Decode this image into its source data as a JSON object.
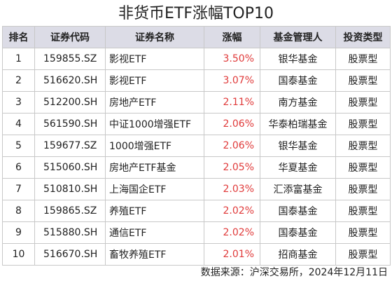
{
  "title": "非货币ETF涨幅TOP10",
  "headers": [
    "排名",
    "证券代码",
    "证券名称",
    "涨幅",
    "基金管理人",
    "投资类型"
  ],
  "rows": [
    {
      "rank": "1",
      "code": "159855.SZ",
      "name": "影视ETF",
      "change": "3.50%",
      "manager": "银华基金",
      "type": "股票型"
    },
    {
      "rank": "2",
      "code": "516620.SH",
      "name": "影视ETF",
      "change": "3.07%",
      "manager": "国泰基金",
      "type": "股票型"
    },
    {
      "rank": "3",
      "code": "512200.SH",
      "name": "房地产ETF",
      "change": "2.11%",
      "manager": "南方基金",
      "type": "股票型"
    },
    {
      "rank": "4",
      "code": "561590.SH",
      "name": "中证1000增强ETF",
      "change": "2.06%",
      "manager": "华泰柏瑞基金",
      "type": "股票型"
    },
    {
      "rank": "5",
      "code": "159677.SZ",
      "name": "1000增强ETF",
      "change": "2.06%",
      "manager": "银华基金",
      "type": "股票型"
    },
    {
      "rank": "6",
      "code": "515060.SH",
      "name": "房地产ETF基金",
      "change": "2.05%",
      "manager": "华夏基金",
      "type": "股票型"
    },
    {
      "rank": "7",
      "code": "510810.SH",
      "name": "上海国企ETF",
      "change": "2.03%",
      "manager": "汇添富基金",
      "type": "股票型"
    },
    {
      "rank": "8",
      "code": "159865.SZ",
      "name": "养殖ETF",
      "change": "2.02%",
      "manager": "国泰基金",
      "type": "股票型"
    },
    {
      "rank": "9",
      "code": "515880.SH",
      "name": "通信ETF",
      "change": "2.02%",
      "manager": "国泰基金",
      "type": "股票型"
    },
    {
      "rank": "10",
      "code": "516670.SH",
      "name": "畜牧养殖ETF",
      "change": "2.01%",
      "manager": "招商基金",
      "type": "股票型"
    }
  ],
  "footer": "数据来源：沪深交易所，2024年12月11日",
  "colors": {
    "header_bg": "#dcdce6",
    "change_text": "#e03a3a",
    "border": "#c8c8c8"
  }
}
